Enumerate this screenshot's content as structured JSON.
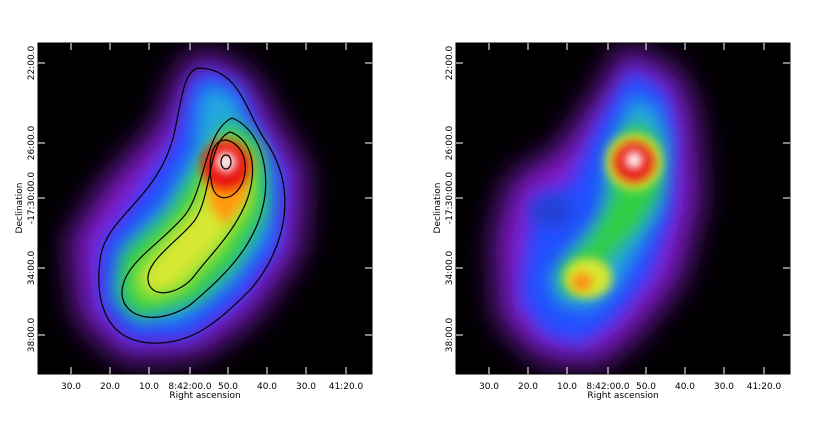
{
  "panels": [
    {
      "x_label": "Right ascension",
      "y_label": "Declination",
      "x_ticks": [
        "30.0",
        "20.0",
        "10.0",
        "8:42:00.0",
        "50.0",
        "40.0",
        "30.0",
        "41:20.0"
      ],
      "y_ticks": [
        "22:00.0",
        "26:00.0",
        "-17:30:00.0",
        "34:00.0",
        "38:00.0"
      ]
    },
    {
      "x_label": "Right ascension",
      "y_label": "Declination",
      "x_ticks": [
        "30.0",
        "20.0",
        "10.0",
        "8:42:00.0",
        "50.0",
        "40.0",
        "30.0",
        "41:20.0"
      ],
      "y_ticks": [
        "22:00.0",
        "26:00.0",
        "-17:30:00.0",
        "34:00.0",
        "38:00.0"
      ]
    }
  ]
}
